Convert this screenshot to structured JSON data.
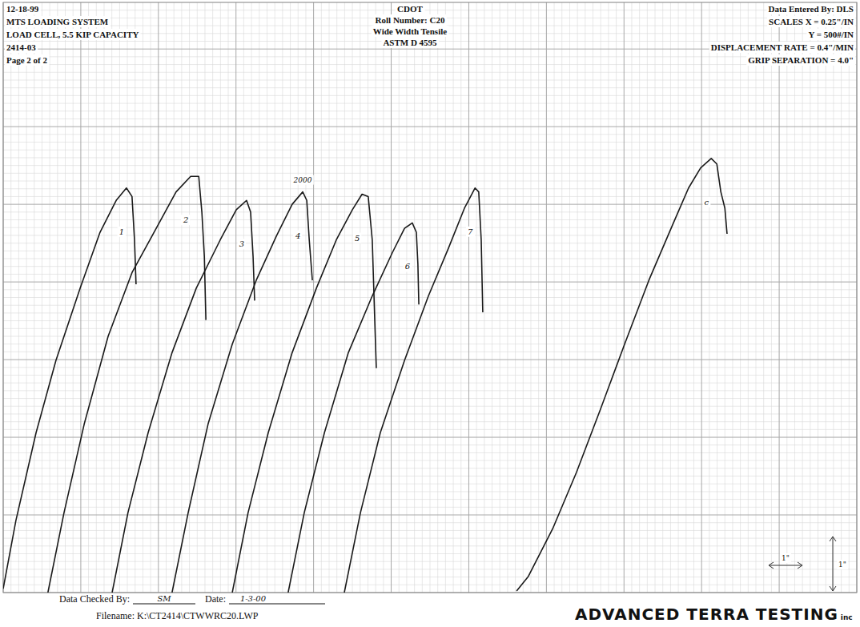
{
  "header": {
    "left": [
      "12-18-99",
      "MTS LOADING SYSTEM",
      "LOAD CELL, 5.5 KIP CAPACITY",
      "2414-03",
      "Page 2 of 2"
    ],
    "center": [
      "CDOT",
      "Roll Number: C20",
      "Wide Width Tensile",
      "ASTM D 4595"
    ],
    "right": [
      "Data Entered By: DLS",
      "SCALES X = 0.25\"/IN",
      "Y = 500#/IN",
      "DISPLACEMENT RATE = 0.4\"/MIN",
      "GRIP SEPARATION = 4.0\""
    ]
  },
  "chart_data": {
    "type": "line",
    "grid": true,
    "tick_labels": false,
    "xlim": [
      0,
      2.75
    ],
    "ylim": [
      0,
      3800
    ],
    "xticks": [
      0,
      0.25,
      0.5,
      0.75,
      1,
      1.25,
      1.5,
      1.75,
      2,
      2.25,
      2.5,
      2.75
    ],
    "yticks": [
      0,
      500,
      1000,
      1500,
      2000,
      2500,
      3000,
      3500
    ],
    "series": [
      {
        "name": "1",
        "color": "#1a1a1a",
        "line_style": "solid",
        "marker": "none",
        "x": [
          0,
          0.041,
          0.106,
          0.17,
          0.248,
          0.312,
          0.364,
          0.397,
          0.415,
          0.423,
          0.428
        ],
        "values": [
          25,
          465,
          1030,
          1495,
          1960,
          2320,
          2525,
          2605,
          2550,
          2270,
          1985
        ]
      },
      {
        "name": "2",
        "color": "#1a1a1a",
        "line_style": "solid",
        "marker": "none",
        "x": [
          0.144,
          0.196,
          0.261,
          0.338,
          0.415,
          0.493,
          0.557,
          0.604,
          0.63,
          0.64,
          0.648,
          0.653
        ],
        "values": [
          0,
          515,
          1085,
          1650,
          2060,
          2345,
          2580,
          2680,
          2680,
          2450,
          2165,
          1755
        ]
      },
      {
        "name": "3",
        "color": "#1a1a1a",
        "line_style": "solid",
        "marker": "none",
        "x": [
          0.351,
          0.402,
          0.467,
          0.544,
          0.622,
          0.699,
          0.751,
          0.784,
          0.797,
          0.805,
          0.81
        ],
        "values": [
          0,
          515,
          1030,
          1545,
          1960,
          2270,
          2465,
          2525,
          2450,
          2165,
          1880
        ]
      },
      {
        "name": "4",
        "annotation": "2000",
        "color": "#1a1a1a",
        "line_style": "solid",
        "marker": "none",
        "x": [
          0.544,
          0.596,
          0.66,
          0.738,
          0.815,
          0.88,
          0.931,
          0.965,
          0.978,
          0.986,
          0.996
        ],
        "values": [
          0,
          515,
          1085,
          1600,
          2010,
          2295,
          2500,
          2580,
          2525,
          2270,
          2010
        ]
      },
      {
        "name": "5",
        "color": "#1a1a1a",
        "line_style": "solid",
        "marker": "none",
        "x": [
          0.738,
          0.789,
          0.854,
          0.931,
          1.009,
          1.073,
          1.125,
          1.156,
          1.176,
          1.189,
          1.197,
          1.202
        ],
        "values": [
          0,
          515,
          1030,
          1545,
          1960,
          2270,
          2465,
          2565,
          2550,
          2270,
          1755,
          1445
        ]
      },
      {
        "name": "6",
        "color": "#1a1a1a",
        "line_style": "solid",
        "marker": "none",
        "x": [
          0.918,
          0.97,
          1.035,
          1.112,
          1.189,
          1.254,
          1.293,
          1.318,
          1.331,
          1.336,
          1.339
        ],
        "values": [
          0,
          515,
          1030,
          1545,
          1910,
          2190,
          2345,
          2380,
          2320,
          2115,
          1855
        ]
      },
      {
        "name": "7",
        "color": "#1a1a1a",
        "line_style": "solid",
        "marker": "none",
        "x": [
          1.099,
          1.151,
          1.215,
          1.293,
          1.37,
          1.434,
          1.486,
          1.52,
          1.532,
          1.54,
          1.545
        ],
        "values": [
          0,
          515,
          1030,
          1495,
          1910,
          2215,
          2475,
          2605,
          2580,
          2270,
          1805
        ]
      },
      {
        "name": "c",
        "color": "#1a1a1a",
        "line_style": "solid",
        "marker": "none",
        "x": [
          1.654,
          1.692,
          1.77,
          1.847,
          1.925,
          2.002,
          2.08,
          2.157,
          2.208,
          2.247,
          2.281,
          2.299,
          2.312,
          2.325,
          2.332
        ],
        "values": [
          10,
          105,
          410,
          775,
          1185,
          1600,
          2010,
          2370,
          2605,
          2735,
          2795,
          2760,
          2580,
          2475,
          2310
        ]
      }
    ]
  },
  "scale_marker": {
    "x_label": "1\"",
    "y_label": "1\""
  },
  "footer": {
    "checked_label": "Data Checked By:",
    "checked_by": "SM",
    "date_label": "Date:",
    "date": "1-3-00",
    "filename": "Filename: K:\\CT2414\\CTWWRC20.LWP",
    "company": "ADVANCED TERRA TESTING",
    "company_suffix": "inc"
  }
}
